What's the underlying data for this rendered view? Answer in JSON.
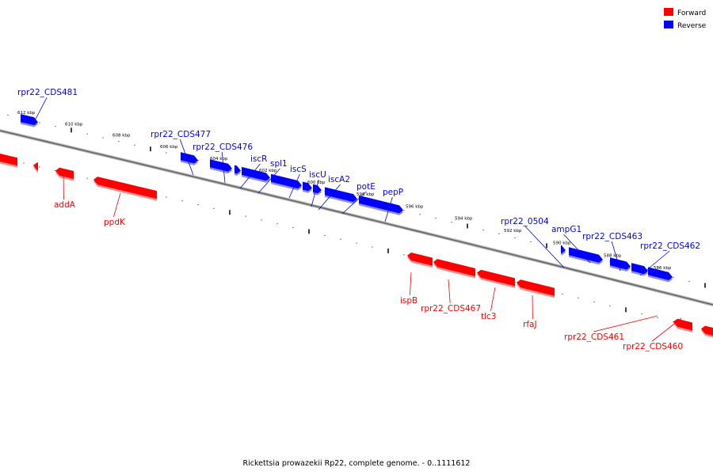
{
  "caption": "Rickettsia prowazekii Rp22, complete genome. - 0..1111612",
  "colors": {
    "forward": "#ff0000",
    "reverse": "#0000ff",
    "backbone": "#888888"
  },
  "legend": [
    {
      "label": "Forward",
      "color": "#ff0000"
    },
    {
      "label": "Reverse",
      "color": "#0000ff"
    }
  ],
  "tick_labels": [
    "612 kbp",
    "610 kbp",
    "608 kbp",
    "606 kbp",
    "604 kbp",
    "602 kbp",
    "600 kbp",
    "598 kbp",
    "596 kbp",
    "594 kbp",
    "592 kbp",
    "590 kbp",
    "588 kbp",
    "586 kbp"
  ],
  "reverse_genes": [
    "rpr22_CDS481",
    "rpr22_CDS477",
    "rpr22_CDS476",
    "iscR",
    "spl1",
    "iscS",
    "iscU",
    "iscA2",
    "potE",
    "pepP",
    "rpr22_0504",
    "ampG1",
    "rpr22_CDS463",
    "rpr22_CDS462"
  ],
  "forward_genes": [
    "addA",
    "ppdK",
    "ispB",
    "rpr22_CDS467",
    "tlc3",
    "rfaJ",
    "rpr22_CDS461",
    "rpr22_CDS460"
  ]
}
